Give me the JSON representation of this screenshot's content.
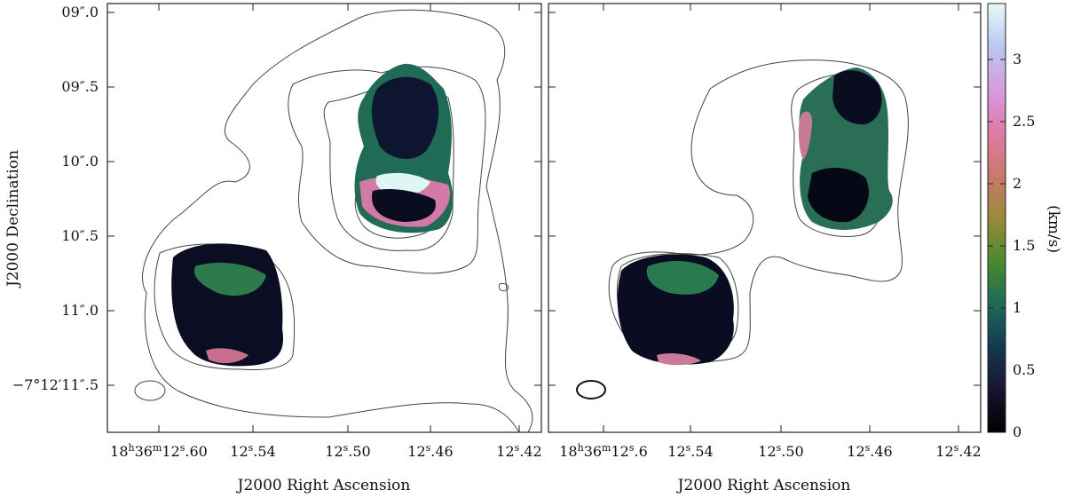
{
  "figure": {
    "y_axis_label": "J2000 Declination",
    "colorbar_label": "(km/s)",
    "colorbar_range": [
      0,
      3.45
    ],
    "colorbar_ticks": [
      "0",
      "0.5",
      "1",
      "1.5",
      "2",
      "2.5",
      "3"
    ],
    "colorbar_tick_values": [
      0,
      0.5,
      1,
      1.5,
      2,
      2.5,
      3
    ],
    "colormap": [
      "#000000",
      "#1a1430",
      "#143a52",
      "#1f6b55",
      "#4a8a30",
      "#9a8a3a",
      "#c9796a",
      "#e07aa8",
      "#d79be0",
      "#b9c8f0",
      "#e6fbf6"
    ],
    "y_ticks": [
      "09″.0",
      "09″.5",
      "10″.0",
      "10″.5",
      "11″.0",
      "−7°12′11″.5"
    ],
    "panels": [
      {
        "id": "left",
        "x_label": "J2000 Right Ascension",
        "x_ticks": [
          {
            "main": "18",
            "sup1": "h",
            "mid": "36",
            "sup2": "m",
            "tail": "12",
            "sup3": "s",
            "end": ".60"
          },
          {
            "main": "",
            "sup1": "",
            "mid": "",
            "sup2": "",
            "tail": "12",
            "sup3": "s",
            "end": ".54"
          },
          {
            "main": "",
            "sup1": "",
            "mid": "",
            "sup2": "",
            "tail": "12",
            "sup3": "s",
            "end": ".50"
          },
          {
            "main": "",
            "sup1": "",
            "mid": "",
            "sup2": "",
            "tail": "12",
            "sup3": "s",
            "end": ".46"
          },
          {
            "main": "",
            "sup1": "",
            "mid": "",
            "sup2": "",
            "tail": "12",
            "sup3": "s",
            "end": ".42"
          }
        ]
      },
      {
        "id": "right",
        "x_label": "J2000 Right Ascension",
        "x_ticks": [
          {
            "main": "18",
            "sup1": "h",
            "mid": "36",
            "sup2": "m",
            "tail": "12",
            "sup3": "s",
            "end": ".6"
          },
          {
            "main": "",
            "sup1": "",
            "mid": "",
            "sup2": "",
            "tail": "12",
            "sup3": "s",
            "end": ".54"
          },
          {
            "main": "",
            "sup1": "",
            "mid": "",
            "sup2": "",
            "tail": "12",
            "sup3": "s",
            "end": ".50"
          },
          {
            "main": "",
            "sup1": "",
            "mid": "",
            "sup2": "",
            "tail": "12",
            "sup3": "s",
            "end": ".46"
          },
          {
            "main": "",
            "sup1": "",
            "mid": "",
            "sup2": "",
            "tail": "12",
            "sup3": "s",
            "end": ".42"
          }
        ]
      }
    ]
  }
}
